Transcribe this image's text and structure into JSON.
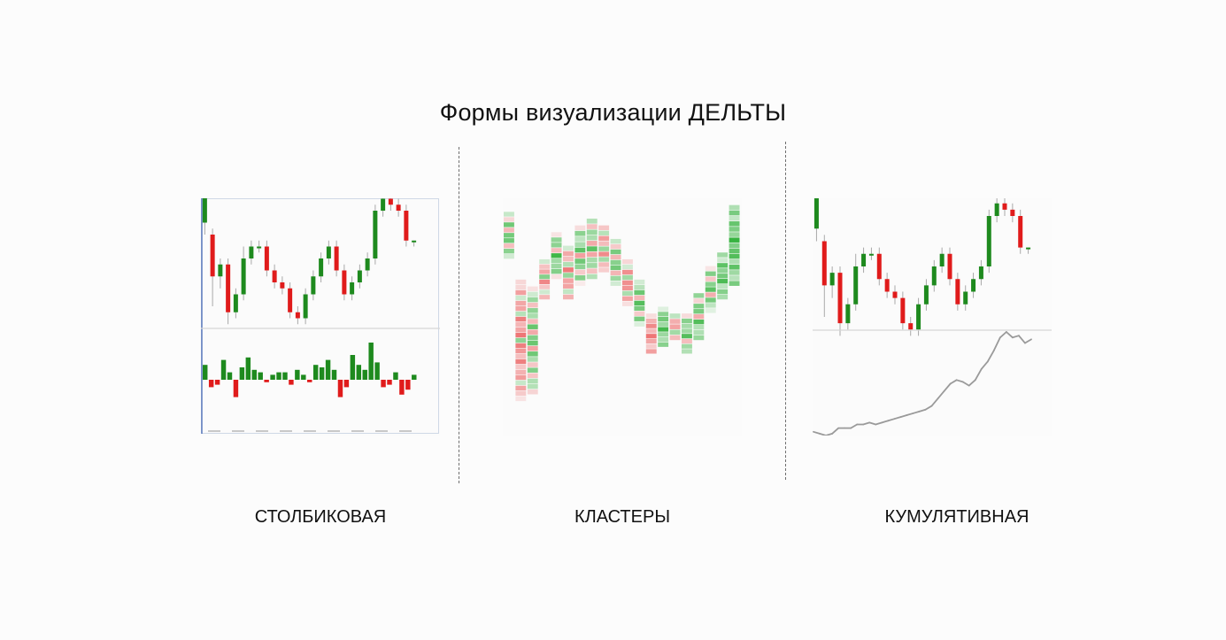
{
  "title": "Формы визуализации ДЕЛЬТЫ",
  "colors": {
    "bull": "#1e8a1e",
    "bear": "#e01b1b",
    "wick": "#a8a8a8",
    "line": "#9a9a9a",
    "separator": "#d6d6d6",
    "divider": "#6e6e6e"
  },
  "panels": [
    {
      "caption": "СТОЛБИКОВАЯ",
      "icon": "delta-bar-histogram-chart",
      "price_ohlc": [
        [
          64,
          70,
          62,
          71
        ],
        [
          62,
          55,
          50,
          63
        ],
        [
          55,
          57,
          53,
          58
        ],
        [
          57,
          49,
          47,
          58
        ],
        [
          49,
          52,
          48,
          53
        ],
        [
          52,
          58,
          51,
          60
        ],
        [
          58,
          60,
          57,
          61
        ],
        [
          60,
          60,
          59,
          61
        ],
        [
          60,
          56,
          55,
          61
        ],
        [
          56,
          54,
          53,
          57
        ],
        [
          54,
          53,
          52,
          55
        ],
        [
          53,
          49,
          48,
          54
        ],
        [
          49,
          48,
          47,
          50
        ],
        [
          48,
          52,
          47,
          53
        ],
        [
          52,
          55,
          51,
          56
        ],
        [
          55,
          58,
          54,
          59
        ],
        [
          58,
          60,
          57,
          61
        ],
        [
          60,
          56,
          55,
          61
        ],
        [
          56,
          52,
          51,
          57
        ],
        [
          52,
          54,
          51,
          55
        ],
        [
          54,
          56,
          53,
          57
        ],
        [
          56,
          58,
          55,
          59
        ],
        [
          58,
          66,
          57,
          67
        ],
        [
          66,
          68,
          65,
          70
        ],
        [
          68,
          67,
          66,
          69
        ],
        [
          67,
          66,
          65,
          68
        ],
        [
          66,
          61,
          60,
          67
        ],
        [
          61,
          61,
          60,
          61
        ]
      ],
      "delta_values": [
        6,
        -3,
        -2,
        8,
        3,
        -7,
        5,
        9,
        4,
        3,
        -1,
        2,
        3,
        3,
        -2,
        4,
        2,
        -1,
        6,
        5,
        8,
        4,
        -7,
        -3,
        10,
        6,
        4,
        15,
        7,
        -3,
        -2,
        3,
        -6,
        -4,
        2
      ]
    },
    {
      "caption": "КЛАСТЕРЫ",
      "icon": "delta-cluster-footprint-chart",
      "cluster_columns": [
        {
          "low": 52,
          "high": 66,
          "bias": 0.3
        },
        {
          "low": 10,
          "high": 46,
          "bias": -0.4
        },
        {
          "low": 12,
          "high": 44,
          "bias": 0.2
        },
        {
          "low": 40,
          "high": 52,
          "bias": -0.2
        },
        {
          "low": 46,
          "high": 60,
          "bias": 0.4
        },
        {
          "low": 40,
          "high": 56,
          "bias": -0.3
        },
        {
          "low": 44,
          "high": 62,
          "bias": 0.3
        },
        {
          "low": 46,
          "high": 64,
          "bias": 0.1
        },
        {
          "low": 48,
          "high": 62,
          "bias": -0.2
        },
        {
          "low": 44,
          "high": 58,
          "bias": 0.2
        },
        {
          "low": 38,
          "high": 52,
          "bias": -0.3
        },
        {
          "low": 32,
          "high": 46,
          "bias": 0.4
        },
        {
          "low": 24,
          "high": 36,
          "bias": -0.5
        },
        {
          "low": 26,
          "high": 38,
          "bias": 0.5
        },
        {
          "low": 28,
          "high": 36,
          "bias": -0.1
        },
        {
          "low": 24,
          "high": 36,
          "bias": 0.3
        },
        {
          "low": 28,
          "high": 42,
          "bias": 0.4
        },
        {
          "low": 36,
          "high": 50,
          "bias": 0.3
        },
        {
          "low": 40,
          "high": 54,
          "bias": 0.5
        },
        {
          "low": 44,
          "high": 68,
          "bias": 0.6
        }
      ]
    },
    {
      "caption": "КУМУЛЯТИВНАЯ",
      "icon": "cumulative-delta-line-chart",
      "price_ohlc": [
        [
          64,
          70,
          62,
          71
        ],
        [
          62,
          55,
          50,
          63
        ],
        [
          55,
          57,
          53,
          58
        ],
        [
          57,
          49,
          47,
          58
        ],
        [
          49,
          52,
          48,
          53
        ],
        [
          52,
          58,
          51,
          60
        ],
        [
          58,
          60,
          57,
          61
        ],
        [
          60,
          60,
          59,
          61
        ],
        [
          60,
          56,
          55,
          61
        ],
        [
          56,
          54,
          53,
          57
        ],
        [
          54,
          53,
          52,
          55
        ],
        [
          53,
          49,
          48,
          54
        ],
        [
          49,
          48,
          47,
          50
        ],
        [
          48,
          52,
          47,
          53
        ],
        [
          52,
          55,
          51,
          56
        ],
        [
          55,
          58,
          54,
          59
        ],
        [
          58,
          60,
          57,
          61
        ],
        [
          60,
          56,
          55,
          61
        ],
        [
          56,
          52,
          51,
          57
        ],
        [
          52,
          54,
          51,
          55
        ],
        [
          54,
          56,
          53,
          57
        ],
        [
          56,
          58,
          55,
          59
        ],
        [
          58,
          66,
          57,
          67
        ],
        [
          66,
          68,
          65,
          70
        ],
        [
          68,
          67,
          66,
          69
        ],
        [
          67,
          66,
          65,
          68
        ],
        [
          66,
          61,
          60,
          67
        ],
        [
          61,
          61,
          60,
          61
        ]
      ],
      "cumulative_values": [
        4,
        3,
        2,
        3,
        6,
        6,
        6,
        8,
        8,
        9,
        8,
        9,
        10,
        11,
        12,
        13,
        14,
        15,
        16,
        18,
        22,
        26,
        30,
        32,
        31,
        29,
        32,
        38,
        42,
        48,
        55,
        58,
        55,
        56,
        52,
        54
      ]
    }
  ]
}
